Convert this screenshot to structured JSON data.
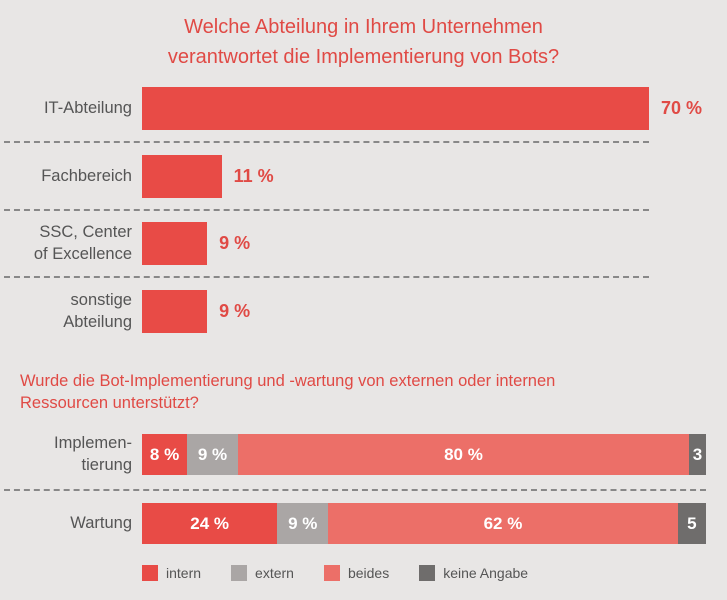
{
  "colors": {
    "accent": "#e04a45",
    "intern": "#e84b46",
    "extern": "#aaa6a5",
    "beides": "#ec6f68",
    "keine_angabe": "#6f6d6c"
  },
  "chart_data": [
    {
      "type": "bar",
      "orientation": "horizontal",
      "title": "Welche Abteilung in Ihrem Unternehmen\nverantwortet die Implementierung von Bots?",
      "categories": [
        "IT-Abteilung",
        "Fachbereich",
        "SSC, Center\nof Excellence",
        "sonstige\nAbteilung"
      ],
      "values": [
        70,
        11,
        9,
        9
      ],
      "value_labels": [
        "70 %",
        "11 %",
        "9 %",
        "9 %"
      ],
      "unit": "%",
      "xlim": [
        0,
        70
      ],
      "grid": false
    },
    {
      "type": "bar",
      "orientation": "horizontal",
      "stacked": true,
      "title": "Wurde die Bot-Implementierung und -wartung von externen oder internen\nRessourcen unterstützt?",
      "categories": [
        "Implemen-\ntierung",
        "Wartung"
      ],
      "series": [
        {
          "name": "intern",
          "values": [
            8,
            24
          ],
          "labels": [
            "8 %",
            "24 %"
          ]
        },
        {
          "name": "extern",
          "values": [
            9,
            9
          ],
          "labels": [
            "9 %",
            "9 %"
          ]
        },
        {
          "name": "beides",
          "values": [
            80,
            62
          ],
          "labels": [
            "80 %",
            "62 %"
          ]
        },
        {
          "name": "keine Angabe",
          "values": [
            3,
            5
          ],
          "labels": [
            "3",
            "5"
          ]
        }
      ],
      "unit": "%",
      "legend": "bottom",
      "grid": false
    }
  ]
}
